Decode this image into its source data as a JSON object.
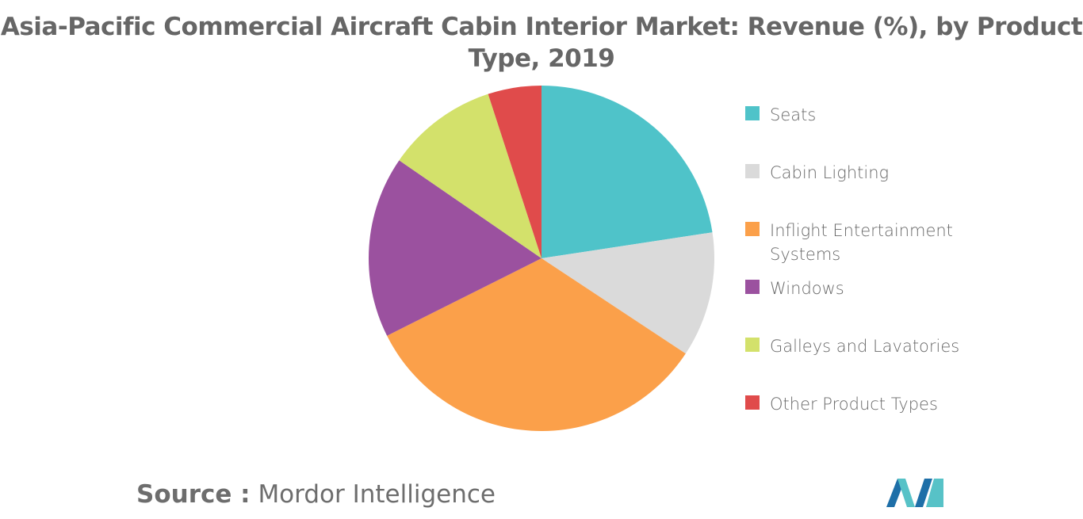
{
  "title": "Asia-Pacific Commercial Aircraft Cabin Interior Market: Revenue (%), by Product Type, 2019",
  "source": {
    "label": "Source :",
    "text": "Mordor Intelligence"
  },
  "chart_data": {
    "type": "pie",
    "title": "Asia-Pacific Commercial Aircraft Cabin Interior Market: Revenue (%), by Product Type, 2019",
    "start_angle_deg": 0,
    "direction": "clockwise",
    "legend_position": "right",
    "slices": [
      {
        "label": "Seats",
        "value": 22.6,
        "color": "#4fc3c9"
      },
      {
        "label": "Cabin Lighting",
        "value": 11.7,
        "color": "#dadada"
      },
      {
        "label": "Inflight Entertainment Systems",
        "value": 33.3,
        "color": "#fba04a"
      },
      {
        "label": "Windows",
        "value": 17.0,
        "color": "#9b519f"
      },
      {
        "label": "Galleys and Lavatories",
        "value": 10.4,
        "color": "#d3e16b"
      },
      {
        "label": "Other Product Types",
        "value": 5.0,
        "color": "#e04b4b"
      }
    ]
  },
  "logo": {
    "icon": "mordor-intelligence-logo-icon",
    "colors": [
      "#1e6fa8",
      "#57c2c7"
    ]
  }
}
